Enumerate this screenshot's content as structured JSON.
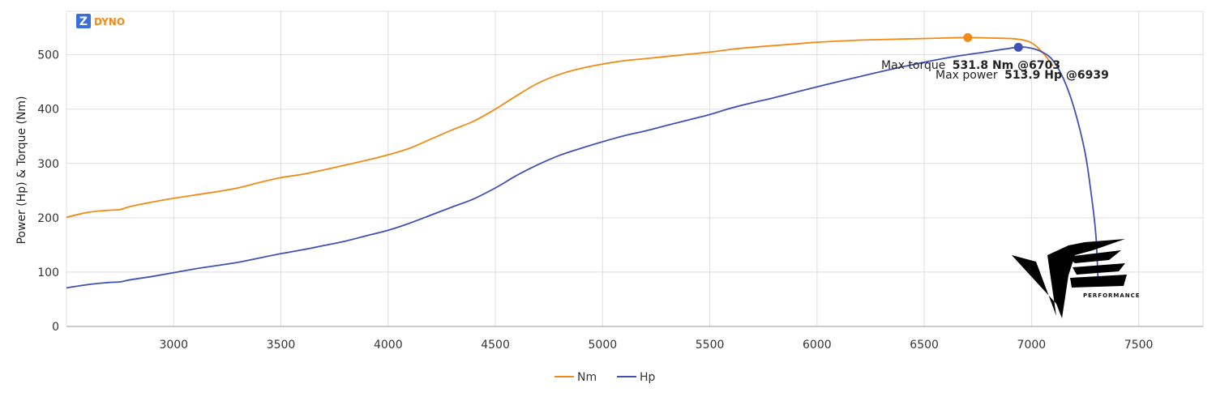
{
  "brand": {
    "logo_letter": "Z",
    "name": "DYNO",
    "color": "#f08a1c",
    "badge_color": "#3b6ed8"
  },
  "watermark": {
    "text": "PERFORMANCE",
    "icon": "ve-performance-logo"
  },
  "annotations": {
    "torque_prefix": "Max torque",
    "torque_value": "531.8 Nm @6703",
    "power_prefix": "Max power",
    "power_value": "513.9 Hp @6939"
  },
  "colors": {
    "nm": "#f28a16",
    "hp": "#3f51b5",
    "grid": "#dddddd",
    "axis": "#999999"
  },
  "chart_data": {
    "type": "line",
    "xlabel": "",
    "ylabel": "Power (Hp) & Torque (Nm)",
    "xlim": [
      2500,
      7800
    ],
    "ylim": [
      0,
      580
    ],
    "x_ticks": [
      3000,
      3500,
      4000,
      4500,
      5000,
      5500,
      6000,
      6500,
      7000,
      7500
    ],
    "y_ticks": [
      0,
      100,
      200,
      300,
      400,
      500
    ],
    "grid": true,
    "legend_position": "bottom",
    "series": [
      {
        "name": "Nm",
        "color": "#f28a16",
        "x": [
          2500,
          2600,
          2700,
          2750,
          2800,
          2900,
          3000,
          3100,
          3200,
          3300,
          3400,
          3500,
          3600,
          3700,
          3800,
          3900,
          4000,
          4100,
          4200,
          4300,
          4400,
          4500,
          4600,
          4700,
          4800,
          4900,
          5000,
          5100,
          5200,
          5300,
          5400,
          5500,
          5600,
          5700,
          5800,
          5900,
          6000,
          6200,
          6400,
          6600,
          6703,
          6800,
          6900,
          6950,
          7000,
          7050,
          7100
        ],
        "y": [
          201,
          210,
          214,
          215,
          221,
          229,
          236,
          242,
          248,
          255,
          265,
          274,
          280,
          288,
          297,
          306,
          316,
          328,
          345,
          362,
          378,
          400,
          425,
          448,
          464,
          475,
          483,
          489,
          493,
          497,
          501,
          505,
          510,
          514,
          517,
          520,
          523,
          527,
          529,
          531,
          531.8,
          531,
          530,
          528,
          522,
          505,
          480
        ]
      },
      {
        "name": "Hp",
        "color": "#3f51b5",
        "x": [
          2500,
          2600,
          2700,
          2750,
          2800,
          2900,
          3000,
          3100,
          3200,
          3300,
          3400,
          3500,
          3600,
          3700,
          3800,
          3900,
          4000,
          4100,
          4200,
          4300,
          4400,
          4500,
          4600,
          4700,
          4800,
          4900,
          5000,
          5100,
          5200,
          5300,
          5400,
          5500,
          5600,
          5700,
          5800,
          5900,
          6000,
          6200,
          6400,
          6600,
          6800,
          6939,
          7000,
          7050,
          7100,
          7150,
          7200,
          7250,
          7280,
          7300,
          7310
        ],
        "y": [
          71,
          77,
          81,
          82,
          86,
          92,
          99,
          106,
          112,
          118,
          126,
          134,
          141,
          149,
          157,
          167,
          177,
          190,
          205,
          220,
          235,
          255,
          278,
          298,
          315,
          328,
          340,
          351,
          360,
          370,
          380,
          390,
          402,
          412,
          421,
          431,
          441,
          460,
          478,
          494,
          506,
          513.9,
          512,
          505,
          490,
          455,
          400,
          320,
          240,
          170,
          90
        ]
      }
    ]
  }
}
